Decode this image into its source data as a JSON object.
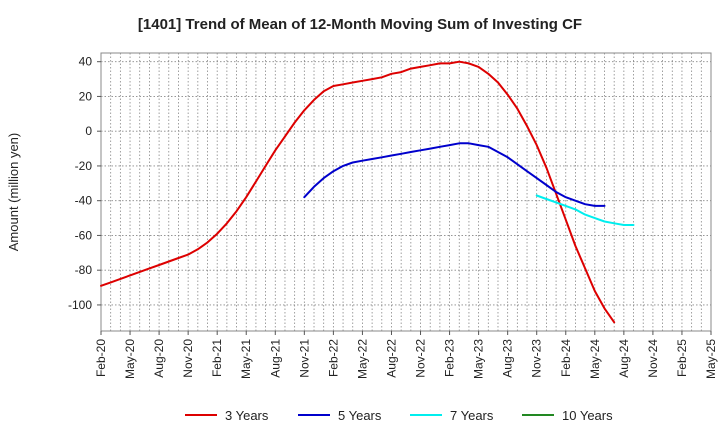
{
  "chart_data": {
    "type": "line",
    "title": "[1401]  Trend of Mean of 12-Month Moving Sum of Investing CF",
    "xlabel": "",
    "ylabel": "Amount (million yen)",
    "ylim": [
      -115,
      45
    ],
    "yticks": [
      40,
      20,
      0,
      -20,
      -40,
      -60,
      -80,
      -100
    ],
    "x_tick_labels": [
      "Feb-20",
      "May-20",
      "Aug-20",
      "Nov-20",
      "Feb-21",
      "May-21",
      "Aug-21",
      "Nov-21",
      "Feb-22",
      "May-22",
      "Aug-22",
      "Nov-22",
      "Feb-23",
      "May-23",
      "Aug-23",
      "Nov-23",
      "Feb-24",
      "May-24",
      "Aug-24",
      "Nov-24",
      "Feb-25",
      "May-25"
    ],
    "x_index_range": [
      0,
      63
    ],
    "grid": true,
    "legend_position": "bottom",
    "series": [
      {
        "name": "3 Years",
        "color": "#dd0000",
        "start_index": 0,
        "values": [
          -89,
          -87,
          -85,
          -83,
          -81,
          -79,
          -77,
          -75,
          -73,
          -71,
          -68,
          -64,
          -59,
          -53,
          -46,
          -38,
          -29,
          -20,
          -11,
          -3,
          5,
          12,
          18,
          23,
          26,
          27,
          28,
          29,
          30,
          31,
          33,
          34,
          36,
          37,
          38,
          39,
          39,
          40,
          39,
          37,
          33,
          28,
          21,
          13,
          3,
          -8,
          -21,
          -36,
          -51,
          -66,
          -79,
          -92,
          -102,
          -110
        ]
      },
      {
        "name": "5 Years",
        "color": "#0000cc",
        "start_index": 21,
        "values": [
          -38,
          -32,
          -27,
          -23,
          -20,
          -18,
          -17,
          -16,
          -15,
          -14,
          -13,
          -12,
          -11,
          -10,
          -9,
          -8,
          -7,
          -7,
          -8,
          -9,
          -12,
          -15,
          -19,
          -23,
          -27,
          -31,
          -35,
          -38,
          -40,
          -42,
          -43,
          -43
        ]
      },
      {
        "name": "7 Years",
        "color": "#00eeee",
        "start_index": 45,
        "values": [
          -37,
          -39,
          -41,
          -43,
          -45,
          -48,
          -50,
          -52,
          -53,
          -54,
          -54
        ]
      },
      {
        "name": "10 Years",
        "color": "#228822",
        "start_index": 0,
        "values": []
      }
    ]
  }
}
